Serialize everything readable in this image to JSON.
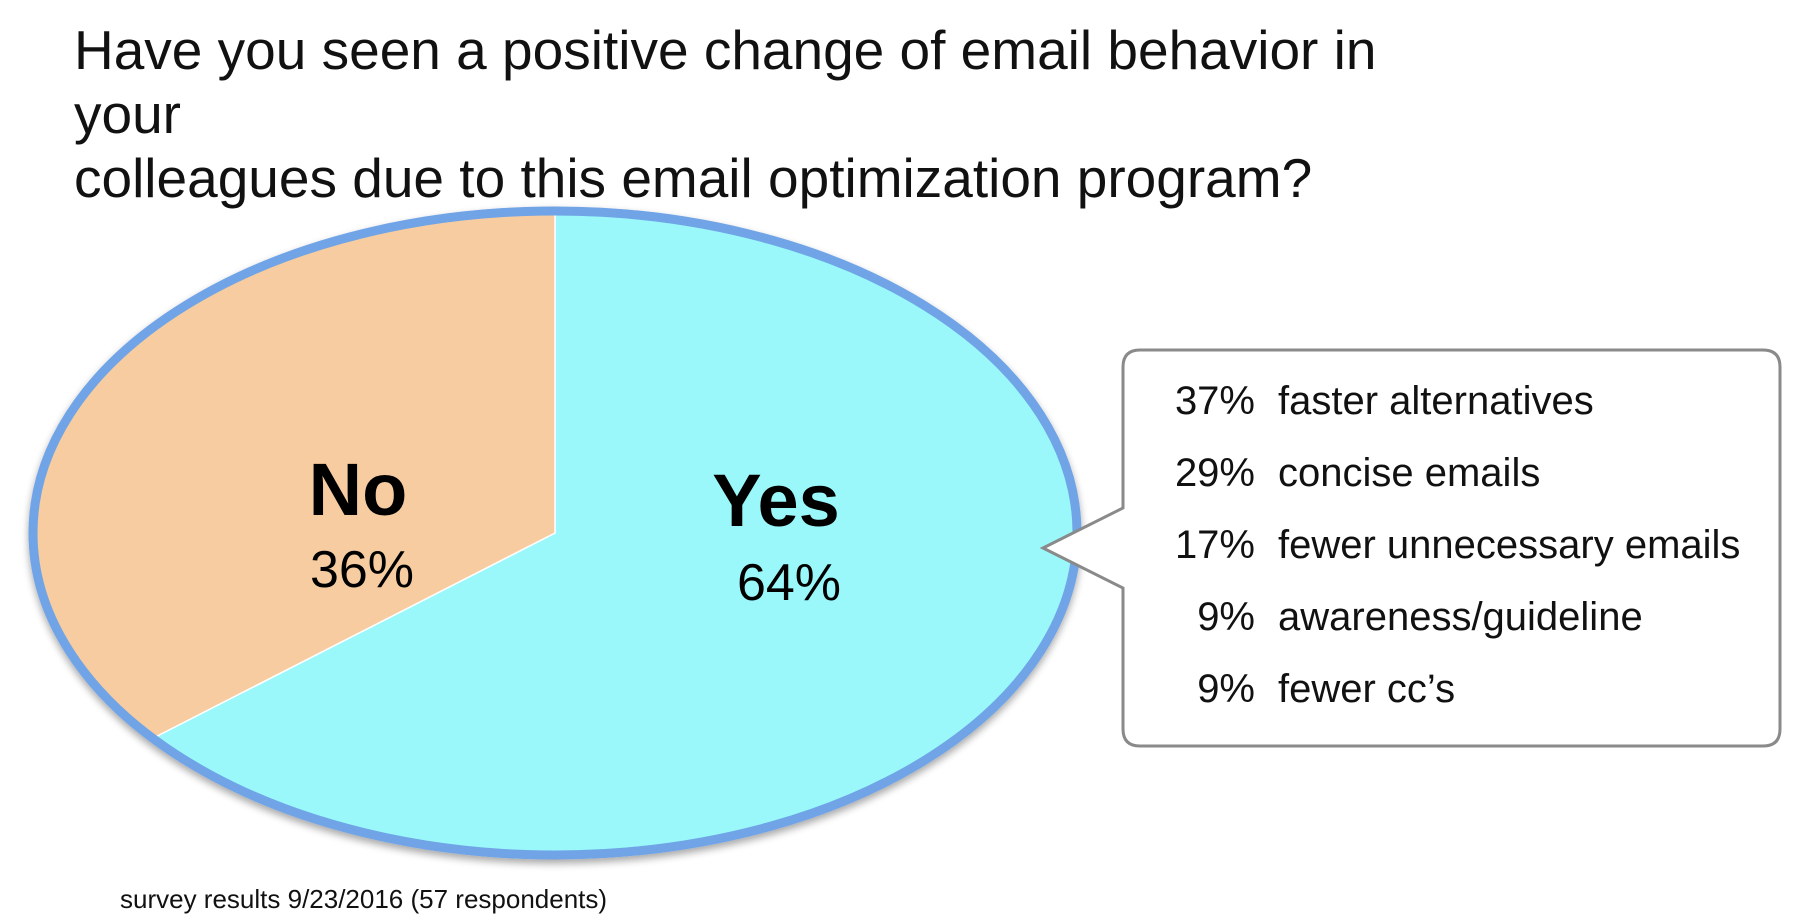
{
  "title": {
    "line1": "Have you seen a positive change of email behavior in your",
    "line2": "colleagues due to this email optimization program?"
  },
  "chart_data": {
    "type": "pie",
    "title": "Have you seen a positive change of email behavior in your colleagues due to this email optimization program?",
    "slices": [
      {
        "name": "Yes",
        "value": 64,
        "label": "64%",
        "color": "#9af8fa"
      },
      {
        "name": "No",
        "value": 36,
        "label": "36%",
        "color": "#f6cca0"
      }
    ],
    "rim_color": "#6fa4e6",
    "callout": {
      "for_slice": "Yes",
      "items": [
        {
          "percent": "37%",
          "reason": "faster alternatives"
        },
        {
          "percent": "29%",
          "reason": "concise emails"
        },
        {
          "percent": "17%",
          "reason": "fewer unnecessary emails"
        },
        {
          "percent": "9%",
          "reason": "awareness/guideline"
        },
        {
          "percent": "9%",
          "reason": "fewer cc’s"
        }
      ],
      "border_color": "#8a8a8a"
    }
  },
  "footnote": "survey results 9/23/2016 (57 respondents)"
}
